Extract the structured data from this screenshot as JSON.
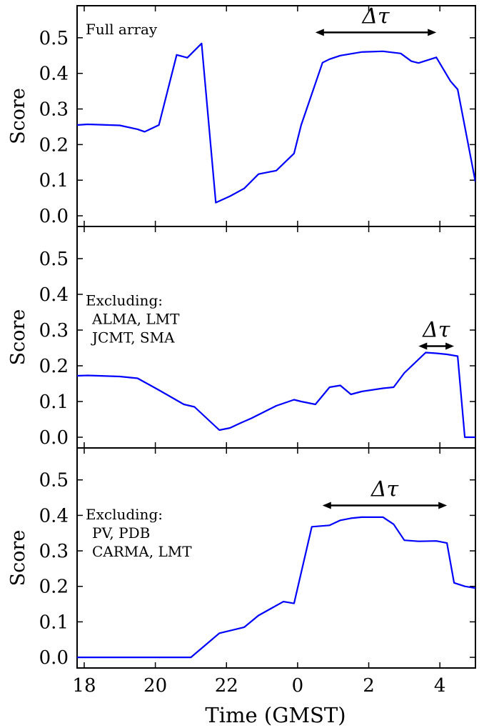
{
  "figure": {
    "xlabel": "Time (GMST)",
    "x_ticks": [
      18,
      20,
      22,
      0,
      2,
      4
    ],
    "tick_label_text": [
      "18",
      "20",
      "22",
      "0",
      "2",
      "4"
    ]
  },
  "chart_data": [
    {
      "type": "line",
      "panel": "top",
      "annotation": [
        "Full array"
      ],
      "ylabel": "Score",
      "ylim": [
        -0.03,
        0.59
      ],
      "yticks": [
        0.0,
        0.1,
        0.2,
        0.3,
        0.4,
        0.5
      ],
      "ytick_labels": [
        "0.0",
        "0.1",
        "0.2",
        "0.3",
        "0.4",
        "0.5"
      ],
      "xlim": [
        17.8,
        29.0
      ],
      "delta_tau": {
        "label": "Δτ",
        "x_start": 24.5,
        "x_end": 27.9,
        "y": 0.515
      },
      "color": "#0000ff",
      "x": [
        17.8,
        18.1,
        19.0,
        19.5,
        19.7,
        20.1,
        20.6,
        20.9,
        21.3,
        21.7,
        22.1,
        22.5,
        22.9,
        23.4,
        23.9,
        24.1,
        24.7,
        24.9,
        25.2,
        25.8,
        26.4,
        26.9,
        27.2,
        27.4,
        27.9,
        28.3,
        28.5,
        29.0
      ],
      "values": [
        0.255,
        0.257,
        0.254,
        0.243,
        0.236,
        0.255,
        0.452,
        0.444,
        0.484,
        0.037,
        0.055,
        0.077,
        0.117,
        0.127,
        0.175,
        0.255,
        0.43,
        0.44,
        0.45,
        0.46,
        0.462,
        0.456,
        0.434,
        0.429,
        0.445,
        0.378,
        0.355,
        0.095
      ]
    },
    {
      "type": "line",
      "panel": "middle",
      "annotation": [
        "Excluding:",
        "ALMA, LMT",
        "JCMT, SMA"
      ],
      "ylabel": "Score",
      "ylim": [
        -0.03,
        0.59
      ],
      "yticks": [
        0.0,
        0.1,
        0.2,
        0.3,
        0.4,
        0.5
      ],
      "ytick_labels": [
        "0.0",
        "0.1",
        "0.2",
        "0.3",
        "0.4",
        "0.5"
      ],
      "xlim": [
        17.8,
        29.0
      ],
      "delta_tau": {
        "label": "Δτ",
        "x_start": 27.4,
        "x_end": 28.4,
        "y": 0.255
      },
      "color": "#0000ff",
      "x": [
        17.8,
        18.1,
        19.0,
        19.5,
        20.1,
        20.8,
        21.1,
        21.8,
        22.1,
        22.4,
        22.7,
        23.4,
        23.9,
        24.1,
        24.5,
        24.9,
        25.2,
        25.5,
        25.8,
        26.4,
        26.7,
        27.0,
        27.6,
        27.9,
        28.2,
        28.5,
        28.7,
        29.0
      ],
      "values": [
        0.172,
        0.173,
        0.17,
        0.165,
        0.132,
        0.092,
        0.085,
        0.02,
        0.026,
        0.04,
        0.053,
        0.088,
        0.105,
        0.1,
        0.092,
        0.14,
        0.145,
        0.12,
        0.128,
        0.137,
        0.14,
        0.18,
        0.237,
        0.235,
        0.232,
        0.227,
        0.0,
        0.0
      ]
    },
    {
      "type": "line",
      "panel": "bottom",
      "annotation": [
        "Excluding:",
        "PV, PDB",
        "CARMA, LMT"
      ],
      "ylabel": "Score",
      "ylim": [
        -0.03,
        0.59
      ],
      "yticks": [
        0.0,
        0.1,
        0.2,
        0.3,
        0.4,
        0.5
      ],
      "ytick_labels": [
        "0.0",
        "0.1",
        "0.2",
        "0.3",
        "0.4",
        "0.5"
      ],
      "xlim": [
        17.8,
        29.0
      ],
      "delta_tau": {
        "label": "Δτ",
        "x_start": 24.7,
        "x_end": 28.2,
        "y": 0.428
      },
      "color": "#0000ff",
      "x": [
        17.8,
        18.1,
        20.1,
        20.8,
        21.0,
        21.8,
        22.5,
        22.9,
        23.6,
        23.9,
        24.4,
        24.9,
        25.2,
        25.5,
        25.8,
        26.4,
        26.7,
        27.0,
        27.4,
        27.9,
        28.2,
        28.4,
        28.7,
        29.0
      ],
      "values": [
        0.0,
        0.0,
        0.0,
        0.0,
        0.0,
        0.068,
        0.085,
        0.118,
        0.157,
        0.152,
        0.368,
        0.372,
        0.386,
        0.392,
        0.395,
        0.395,
        0.375,
        0.33,
        0.327,
        0.328,
        0.322,
        0.21,
        0.2,
        0.195
      ]
    }
  ]
}
